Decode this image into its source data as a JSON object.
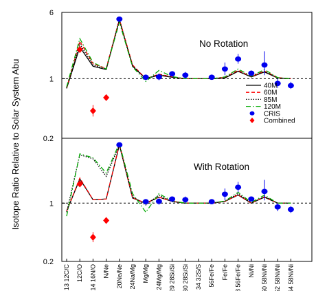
{
  "chart_data": [
    {
      "type": "line",
      "panel": "top",
      "annotation": "No Rotation",
      "ylabel": "Isotope Ratio Relative to Solar System Abu",
      "yscale": "log",
      "ylim": [
        0.2,
        6
      ],
      "yticks": [
        "0.2",
        "1",
        "6"
      ],
      "reference_line": 1,
      "categories": [
        "13C/12C",
        "12C/O",
        "14N/16O",
        "N/Ne",
        "20Ne/22Ne",
        "Na/24Mg",
        "25Mg/Mg",
        "24Mg/26Mg",
        "29Si/28Si",
        "30Si/28Si",
        "34S/32S",
        "Fe/56Fe",
        "57Fe/Fe",
        "58Fe/56Fe",
        "60Ni/Ni",
        "61Ni/58Ni",
        "62Ni/58Ni",
        "64Ni/58Ni"
      ],
      "category_labels": [
        "13C/12C",
        "12C/O",
        "14N/16O",
        "N/Ne",
        "20Ne/22Ne",
        "Na/24Mg",
        "Mg/Mg",
        "24Mg/Mg",
        "29Si/28Si",
        "30Si/28Si",
        "34S/32S",
        "Fe/56Fe",
        "Fe/Fe",
        "58Fe/56Fe",
        "60Ni/Ni",
        "61Ni/58Ni",
        "62Ni/58Ni",
        "64Ni/58Ni"
      ],
      "series": [
        {
          "name": "40M",
          "color": "#000000",
          "dash": "solid",
          "values": [
            0.77,
            2.35,
            1.4,
            1.28,
            4.9,
            1.4,
            1.0,
            1.1,
            1.04,
            1.0,
            1.0,
            1.0,
            1.02,
            1.22,
            1.05,
            1.2,
            1.02,
            1.0
          ]
        },
        {
          "name": "60M",
          "color": "#ff0000",
          "dash": "dashed",
          "values": [
            0.78,
            2.75,
            1.5,
            1.32,
            5.0,
            1.45,
            1.0,
            1.13,
            1.05,
            1.0,
            1.0,
            1.0,
            1.04,
            1.25,
            1.06,
            1.23,
            1.03,
            1.0
          ]
        },
        {
          "name": "85M",
          "color": "#000000",
          "dash": "dotted",
          "values": [
            0.78,
            2.55,
            1.45,
            1.3,
            4.9,
            1.42,
            1.0,
            1.12,
            1.04,
            1.0,
            1.0,
            1.0,
            1.03,
            1.23,
            1.05,
            1.22,
            1.02,
            1.0
          ]
        },
        {
          "name": "120M",
          "color": "#00aa00",
          "dash": "dashdot",
          "values": [
            0.8,
            2.95,
            1.55,
            1.3,
            4.6,
            1.38,
            0.93,
            1.25,
            1.06,
            1.0,
            1.0,
            1.0,
            1.05,
            1.3,
            1.07,
            1.28,
            1.03,
            1.0
          ]
        }
      ],
      "points": [
        {
          "name": "CRIS",
          "color": "#0000ee",
          "marker": "ellipse",
          "data": [
            {
              "x": "20Ne/22Ne",
              "y": 5.0,
              "err": [
                4.75,
                5.25
              ]
            },
            {
              "x": "25Mg/Mg",
              "y": 1.04,
              "err": [
                0.96,
                1.12
              ]
            },
            {
              "x": "24Mg/26Mg",
              "y": 1.05,
              "err": [
                0.96,
                1.15
              ]
            },
            {
              "x": "29Si/28Si",
              "y": 1.14,
              "err": [
                1.06,
                1.23
              ]
            },
            {
              "x": "30Si/28Si",
              "y": 1.1,
              "err": [
                1.0,
                1.2
              ]
            },
            {
              "x": "Fe/56Fe",
              "y": 1.04,
              "err": [
                0.97,
                1.12
              ]
            },
            {
              "x": "57Fe/Fe",
              "y": 1.3,
              "err": [
                1.1,
                1.55
              ]
            },
            {
              "x": "58Fe/56Fe",
              "y": 1.7,
              "err": [
                1.5,
                1.95
              ]
            },
            {
              "x": "60Ni/Ni",
              "y": 1.16,
              "err": [
                1.08,
                1.25
              ]
            },
            {
              "x": "61Ni/58Ni",
              "y": 1.45,
              "err": [
                1.1,
                2.1
              ]
            },
            {
              "x": "62Ni/58Ni",
              "y": 0.88,
              "err": [
                0.78,
                1.0
              ]
            },
            {
              "x": "64Ni/58Ni",
              "y": 0.83,
              "err": [
                0.76,
                0.92
              ]
            }
          ]
        },
        {
          "name": "Combined",
          "color": "#ff0000",
          "marker": "diamond",
          "data": [
            {
              "x": "12C/O",
              "y": 2.2,
              "err": [
                2.05,
                2.35
              ]
            },
            {
              "x": "14N/16O",
              "y": 0.42,
              "err": [
                0.36,
                0.49
              ]
            },
            {
              "x": "N/Ne",
              "y": 0.6,
              "err": [
                0.56,
                0.65
              ]
            }
          ]
        }
      ]
    },
    {
      "type": "line",
      "panel": "bottom",
      "annotation": "With Rotation",
      "yscale": "log",
      "ylim": [
        0.2,
        6
      ],
      "yticks": [
        "0.2",
        "1"
      ],
      "reference_line": 1,
      "xtick_labels": [
        "13 12C/C",
        "12C/O",
        "14 16N/O",
        "N/Ne",
        "20Ne/Ne",
        "24Na/Mg",
        "Mg/Mg",
        "24Mg/Mg",
        "29 28Si/Si",
        "30 28Si/Si",
        "34 32S/S",
        "56Fe/Fe",
        "Fe/Fe",
        "58 56Fe/Fe",
        "Ni/Ni",
        "60 58Ni/Ni",
        "62 58Ni/Ni",
        "64 58Ni/Ni"
      ],
      "series": [
        {
          "name": "40M",
          "color": "#000000",
          "dash": "solid",
          "values": [
            0.8,
            1.95,
            1.1,
            1.12,
            5.0,
            1.15,
            1.0,
            1.18,
            1.05,
            1.0,
            1.0,
            1.0,
            1.05,
            1.25,
            1.0,
            1.18,
            1.0,
            1.0
          ]
        },
        {
          "name": "60M",
          "color": "#ff0000",
          "dash": "dashed",
          "values": [
            0.8,
            2.0,
            1.1,
            1.12,
            5.1,
            1.16,
            1.0,
            1.18,
            1.05,
            1.0,
            1.0,
            1.0,
            1.05,
            1.26,
            1.0,
            1.19,
            1.0,
            1.0
          ]
        },
        {
          "name": "85M",
          "color": "#000000",
          "dash": "dotted",
          "values": [
            0.78,
            3.8,
            3.4,
            2.1,
            5.0,
            1.2,
            0.95,
            1.25,
            1.04,
            1.0,
            1.0,
            1.0,
            1.05,
            1.3,
            1.0,
            1.2,
            1.0,
            1.0
          ]
        },
        {
          "name": "120M",
          "color": "#00aa00",
          "dash": "dashdot",
          "values": [
            0.7,
            3.9,
            3.5,
            2.3,
            5.2,
            1.3,
            0.78,
            1.3,
            1.06,
            1.0,
            1.0,
            1.0,
            1.06,
            1.35,
            1.02,
            1.25,
            1.0,
            1.0
          ]
        }
      ],
      "points": [
        {
          "name": "CRIS",
          "color": "#0000ee",
          "marker": "ellipse",
          "data": [
            {
              "x": "20Ne/22Ne",
              "y": 5.0,
              "err": [
                4.75,
                5.25
              ]
            },
            {
              "x": "25Mg/Mg",
              "y": 1.04,
              "err": [
                0.96,
                1.12
              ]
            },
            {
              "x": "24Mg/26Mg",
              "y": 1.05,
              "err": [
                0.96,
                1.15
              ]
            },
            {
              "x": "29Si/28Si",
              "y": 1.12,
              "err": [
                1.04,
                1.2
              ]
            },
            {
              "x": "30Si/28Si",
              "y": 1.1,
              "err": [
                1.0,
                1.2
              ]
            },
            {
              "x": "Fe/56Fe",
              "y": 1.04,
              "err": [
                0.97,
                1.12
              ]
            },
            {
              "x": "57Fe/Fe",
              "y": 1.28,
              "err": [
                1.08,
                1.5
              ]
            },
            {
              "x": "58Fe/56Fe",
              "y": 1.55,
              "err": [
                1.35,
                1.8
              ]
            },
            {
              "x": "60Ni/Ni",
              "y": 1.12,
              "err": [
                1.05,
                1.2
              ]
            },
            {
              "x": "61Ni/58Ni",
              "y": 1.38,
              "err": [
                1.08,
                1.9
              ]
            },
            {
              "x": "62Ni/58Ni",
              "y": 0.9,
              "err": [
                0.8,
                1.0
              ]
            },
            {
              "x": "64Ni/58Ni",
              "y": 0.84,
              "err": [
                0.76,
                0.92
              ]
            }
          ]
        },
        {
          "name": "Combined",
          "color": "#ff0000",
          "marker": "diamond",
          "data": [
            {
              "x": "12C/O",
              "y": 1.7,
              "err": [
                1.6,
                1.82
              ]
            },
            {
              "x": "14N/16O",
              "y": 0.39,
              "err": [
                0.34,
                0.45
              ]
            },
            {
              "x": "N/Ne",
              "y": 0.62,
              "err": [
                0.58,
                0.66
              ]
            }
          ]
        }
      ]
    }
  ],
  "legend": {
    "placement": "right, inside top panel",
    "entries": [
      {
        "label": "40M",
        "color": "#000000",
        "dash": "solid"
      },
      {
        "label": "60M",
        "color": "#ff0000",
        "dash": "dashed"
      },
      {
        "label": "85M",
        "color": "#000000",
        "dash": "dotted"
      },
      {
        "label": "120M",
        "color": "#00aa00",
        "dash": "dashdot"
      },
      {
        "label": "CRIS",
        "color": "#0000ee",
        "marker": "ellipse"
      },
      {
        "label": "Combined",
        "color": "#ff0000",
        "marker": "diamond"
      }
    ]
  }
}
